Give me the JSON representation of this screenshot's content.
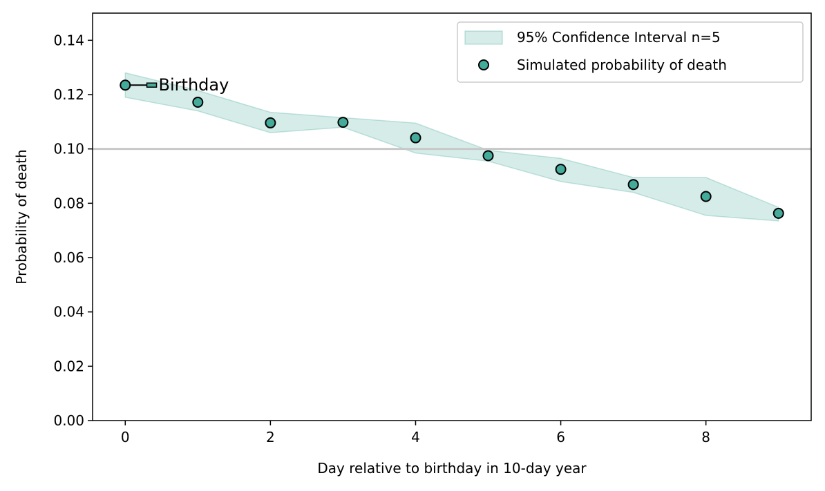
{
  "chart_data": {
    "type": "scatter",
    "xlabel": "Day relative to birthday in 10-day year",
    "ylabel": "Probability of death",
    "xlim": [
      -0.45,
      9.45
    ],
    "ylim": [
      0.0,
      0.15
    ],
    "xticks": [
      0,
      2,
      4,
      6,
      8
    ],
    "xtick_labels": [
      "0",
      "2",
      "4",
      "6",
      "8"
    ],
    "yticks": [
      0.0,
      0.02,
      0.04,
      0.06,
      0.08,
      0.1,
      0.12,
      0.14
    ],
    "ytick_labels": [
      "0.00",
      "0.02",
      "0.04",
      "0.06",
      "0.08",
      "0.10",
      "0.12",
      "0.14"
    ],
    "grid": false,
    "legend_position": "top-right",
    "reference_line": {
      "y": 0.1,
      "color": "#c8c8c8"
    },
    "series": [
      {
        "name": "Simulated probability of death",
        "kind": "points",
        "color": "#44aa99",
        "edge_color": "#000000",
        "x": [
          0,
          1,
          2,
          3,
          4,
          5,
          6,
          7,
          8,
          9
        ],
        "y": [
          0.1235,
          0.1172,
          0.1096,
          0.1098,
          0.1041,
          0.0975,
          0.0925,
          0.0869,
          0.0825,
          0.0763
        ]
      },
      {
        "name": "95% Confidence Interval n=5",
        "kind": "band",
        "color": "#44aa99",
        "x": [
          0,
          1,
          2,
          3,
          4,
          5,
          6,
          7,
          8,
          9
        ],
        "lower": [
          0.119,
          0.114,
          0.106,
          0.108,
          0.0985,
          0.0955,
          0.088,
          0.084,
          0.0755,
          0.0735
        ],
        "upper": [
          0.128,
          0.1215,
          0.1135,
          0.1115,
          0.1095,
          0.0995,
          0.0965,
          0.0895,
          0.0895,
          0.0785
        ]
      }
    ],
    "annotations": [
      {
        "text": "Birthday",
        "x": 0,
        "y": 0.1235,
        "text_x": 0.45,
        "text_y": 0.1235
      }
    ]
  }
}
